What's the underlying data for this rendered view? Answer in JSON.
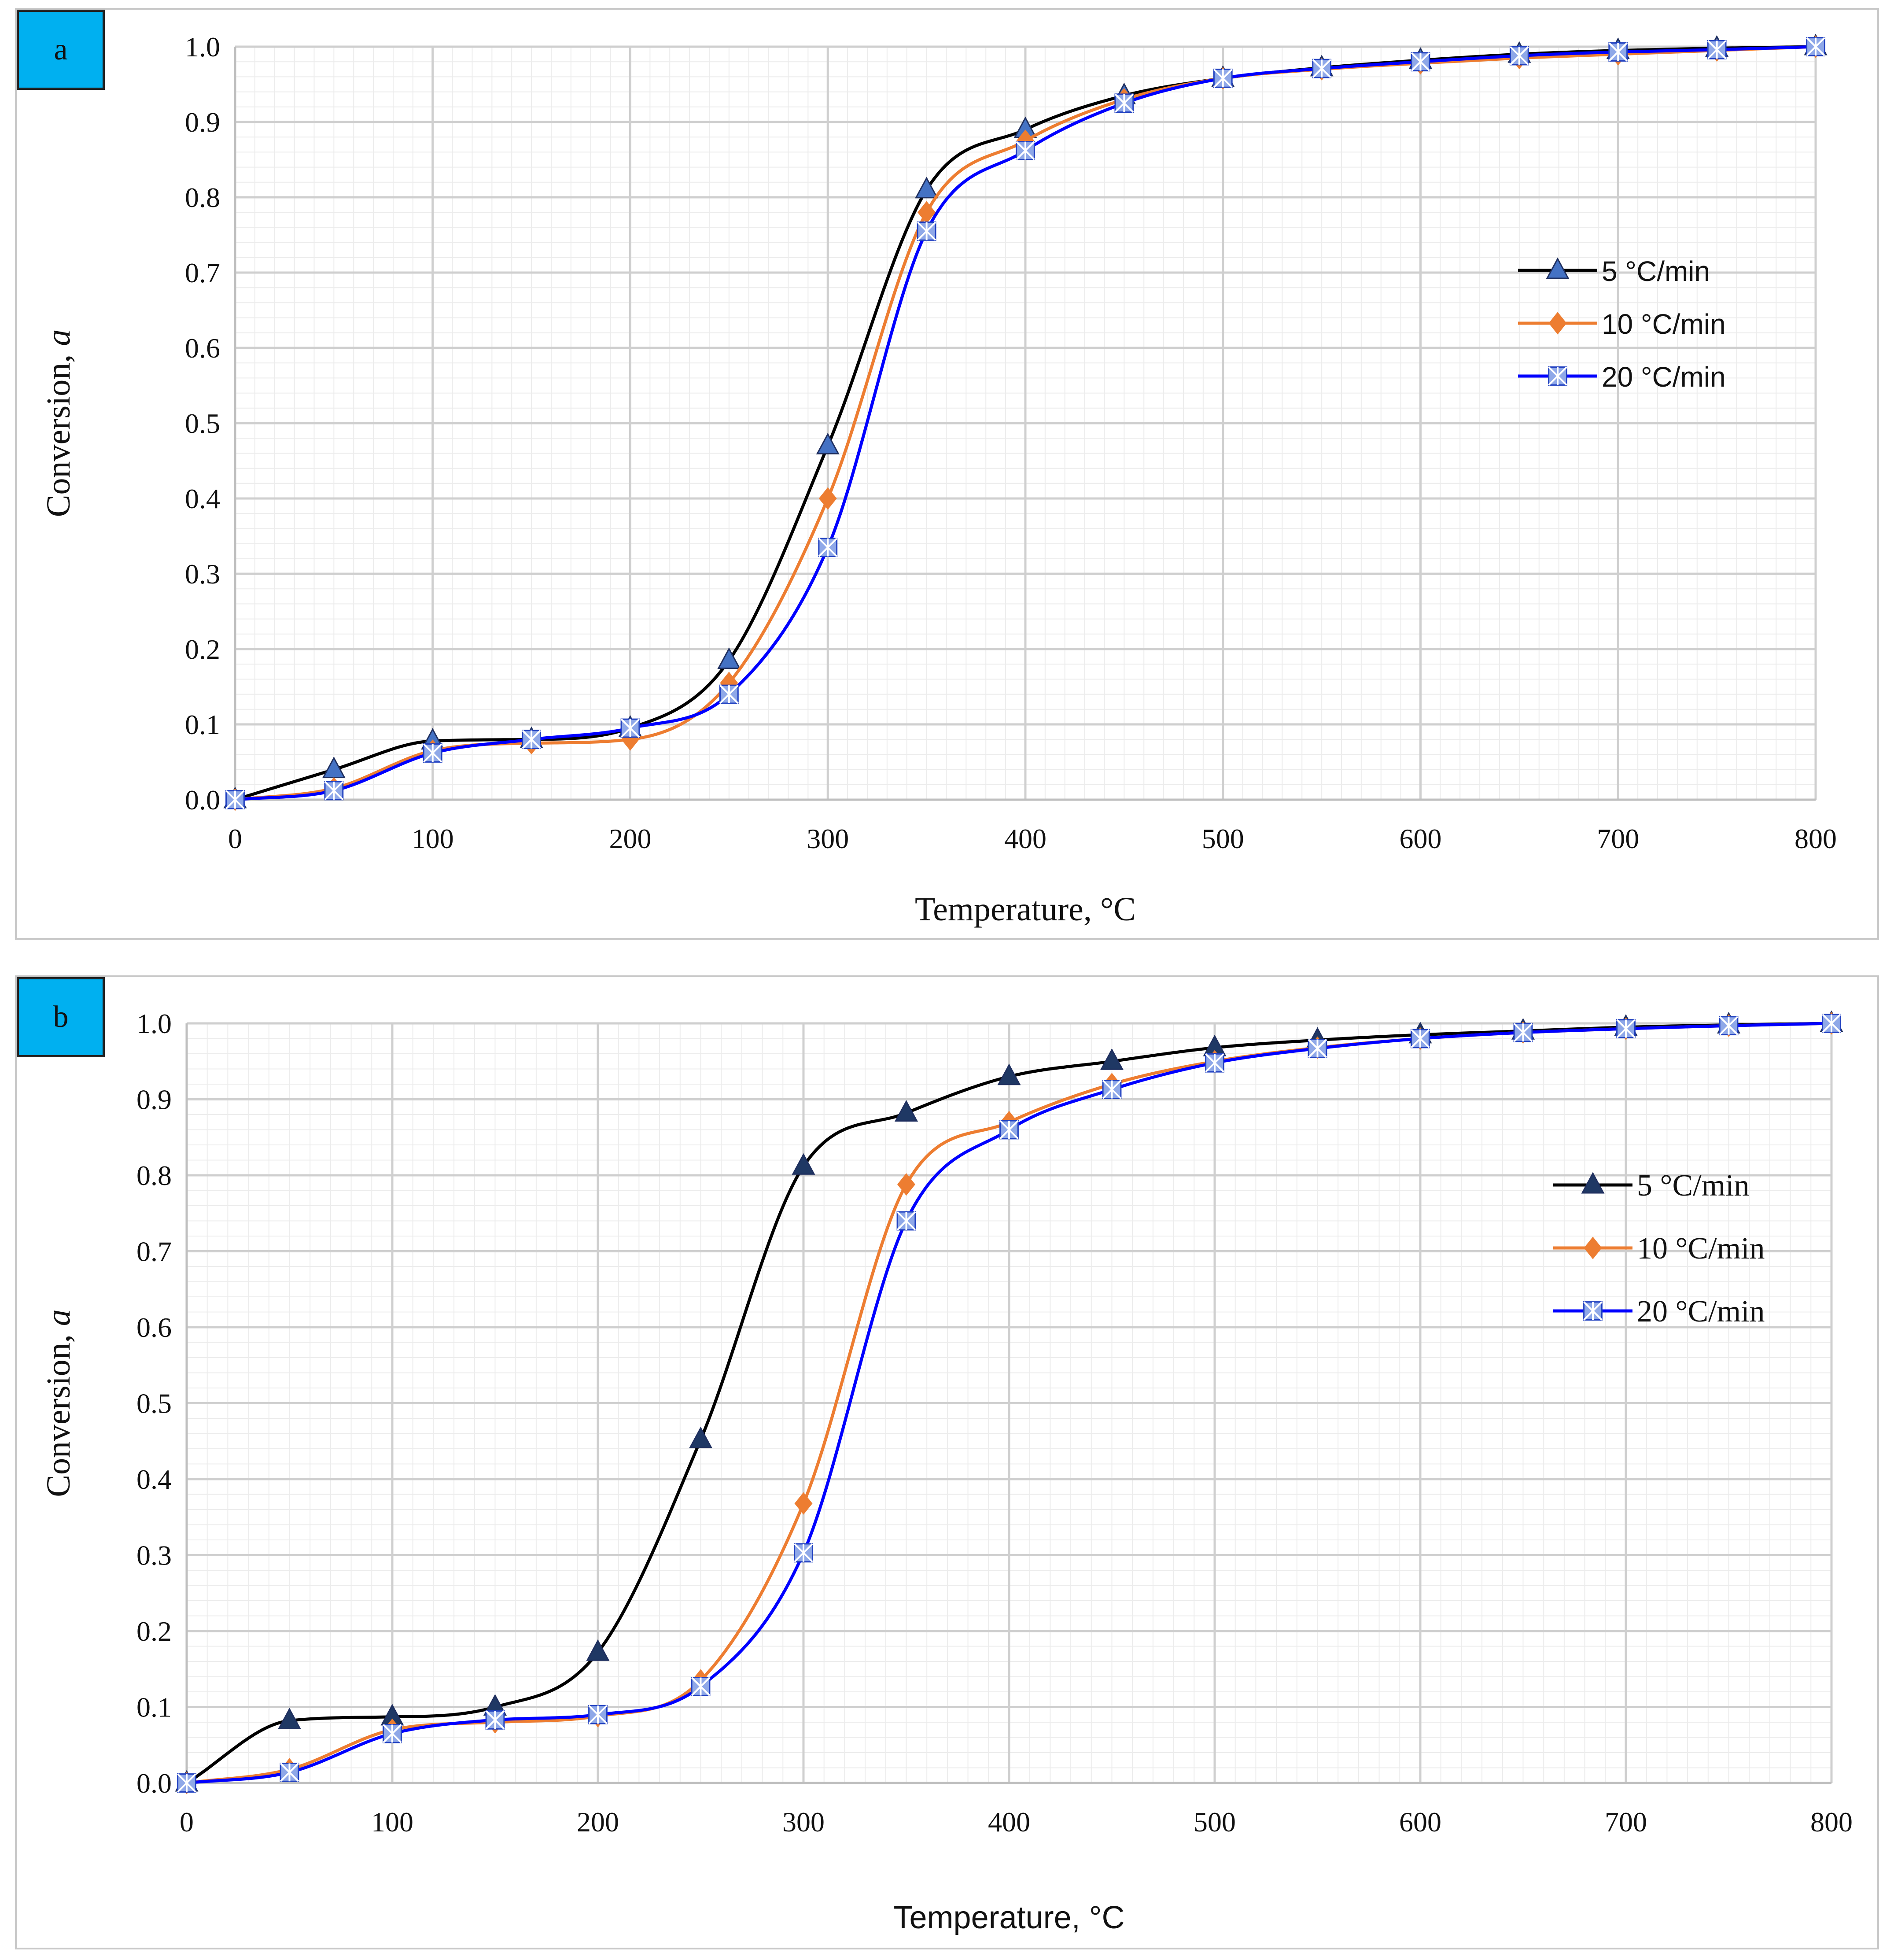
{
  "chart_data": [
    {
      "type": "line",
      "panel_label": "a",
      "xlabel": "Temperature, °C",
      "ylabel_main": "Conversion, ",
      "ylabel_symbol": "a",
      "xlim": [
        0,
        800
      ],
      "ylim": [
        0,
        1.0
      ],
      "x_ticks": [
        "0",
        "100",
        "200",
        "300",
        "400",
        "500",
        "600",
        "700",
        "800"
      ],
      "y_ticks": [
        "0.0",
        "0.1",
        "0.2",
        "0.3",
        "0.4",
        "0.5",
        "0.6",
        "0.7",
        "0.8",
        "0.9",
        "1.0"
      ],
      "grid": true,
      "legend_position": "right",
      "x": [
        0,
        50,
        100,
        150,
        200,
        250,
        300,
        350,
        400,
        450,
        500,
        550,
        600,
        650,
        700,
        750,
        800
      ],
      "series": [
        {
          "name": "5 °C/min",
          "color": "#000000",
          "marker": "triangle",
          "marker_color": "#4472c4",
          "values": [
            0.0,
            0.04,
            0.078,
            0.08,
            0.095,
            0.185,
            0.47,
            0.81,
            0.89,
            0.935,
            0.958,
            0.972,
            0.982,
            0.99,
            0.995,
            0.998,
            1.0
          ]
        },
        {
          "name": "10 °C/min",
          "color": "#ed7d31",
          "marker": "diamond",
          "marker_color": "#ed7d31",
          "values": [
            0.0,
            0.015,
            0.065,
            0.075,
            0.08,
            0.155,
            0.4,
            0.78,
            0.875,
            0.93,
            0.958,
            0.97,
            0.978,
            0.985,
            0.99,
            0.995,
            1.0
          ]
        },
        {
          "name": "20 °C/min",
          "color": "#0000ff",
          "marker": "star-square",
          "marker_color": "#8fa8e8",
          "values": [
            0.0,
            0.012,
            0.062,
            0.08,
            0.095,
            0.14,
            0.335,
            0.755,
            0.862,
            0.925,
            0.958,
            0.971,
            0.98,
            0.988,
            0.993,
            0.996,
            1.0
          ]
        }
      ]
    },
    {
      "type": "line",
      "panel_label": "b",
      "xlabel": "Temperature, °C",
      "ylabel_main": "Conversion, ",
      "ylabel_symbol": "a",
      "xlim": [
        0,
        800
      ],
      "ylim": [
        0,
        1.0
      ],
      "x_ticks": [
        "0",
        "100",
        "200",
        "300",
        "400",
        "500",
        "600",
        "700",
        "800"
      ],
      "y_ticks": [
        "0.0",
        "0.1",
        "0.2",
        "0.3",
        "0.4",
        "0.5",
        "0.6",
        "0.7",
        "0.8",
        "0.9",
        "1.0"
      ],
      "grid": true,
      "legend_position": "right",
      "x": [
        0,
        50,
        100,
        150,
        200,
        250,
        300,
        350,
        400,
        450,
        500,
        550,
        600,
        650,
        700,
        750,
        800
      ],
      "series": [
        {
          "name": "5 °C/min",
          "color": "#000000",
          "marker": "triangle",
          "marker_color": "#1f3864",
          "values": [
            0.0,
            0.082,
            0.087,
            0.1,
            0.172,
            0.452,
            0.812,
            0.882,
            0.93,
            0.95,
            0.968,
            0.978,
            0.985,
            0.99,
            0.995,
            0.998,
            1.0
          ]
        },
        {
          "name": "10 °C/min",
          "color": "#ed7d31",
          "marker": "diamond",
          "marker_color": "#ed7d31",
          "values": [
            0.0,
            0.018,
            0.07,
            0.08,
            0.088,
            0.135,
            0.368,
            0.788,
            0.87,
            0.92,
            0.95,
            0.968,
            0.98,
            0.988,
            0.993,
            0.997,
            1.0
          ]
        },
        {
          "name": "20 °C/min",
          "color": "#0000ff",
          "marker": "star-square",
          "marker_color": "#8fa8e8",
          "values": [
            0.0,
            0.014,
            0.065,
            0.083,
            0.09,
            0.127,
            0.303,
            0.74,
            0.86,
            0.913,
            0.948,
            0.967,
            0.98,
            0.988,
            0.993,
            0.997,
            1.0
          ]
        }
      ]
    }
  ]
}
